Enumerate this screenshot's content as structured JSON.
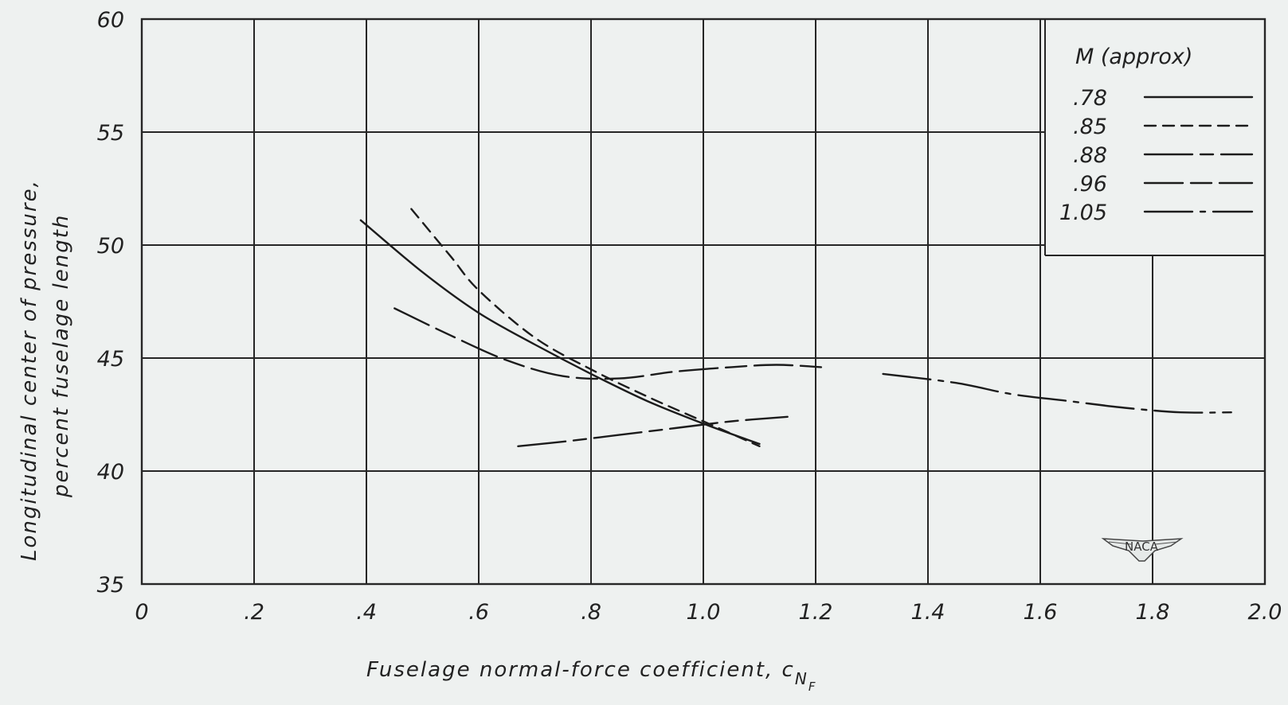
{
  "chart_data": {
    "type": "line",
    "xlabel": "Fuselage normal-force coefficient, c",
    "xlabel_subscript": "N",
    "xlabel_subsubscript": "F",
    "ylabel_line1": "Longitudinal center of pressure,",
    "ylabel_line2": "percent fuselage length",
    "xlim": [
      0,
      2.0
    ],
    "ylim": [
      35,
      60
    ],
    "x_ticks": [
      0,
      0.2,
      0.4,
      0.6,
      0.8,
      1.0,
      1.2,
      1.4,
      1.6,
      1.8,
      2.0
    ],
    "x_tick_labels": [
      "0",
      ".2",
      ".4",
      ".6",
      ".8",
      "1.0",
      "1.2",
      "1.4",
      "1.6",
      "1.8",
      "2.0"
    ],
    "y_ticks": [
      35,
      40,
      45,
      50,
      55,
      60
    ],
    "y_tick_labels": [
      "35",
      "40",
      "45",
      "50",
      "55",
      "60"
    ],
    "grid": true,
    "legend_title": "M (approx)",
    "legend_position": "top-right",
    "series": [
      {
        "name": ".78",
        "dash": "solid",
        "x": [
          0.39,
          0.5,
          0.6,
          0.7,
          0.8,
          0.9,
          1.0,
          1.1
        ],
        "y": [
          51.1,
          48.8,
          47.0,
          45.6,
          44.3,
          43.1,
          42.1,
          41.2
        ]
      },
      {
        "name": ".85",
        "dash": "short",
        "x": [
          0.48,
          0.55,
          0.6,
          0.7,
          0.8,
          0.9,
          1.0,
          1.1
        ],
        "y": [
          51.6,
          49.5,
          48.0,
          45.9,
          44.5,
          43.3,
          42.2,
          41.1
        ]
      },
      {
        "name": ".88",
        "dash": "long-short",
        "x": [
          0.67,
          0.75,
          0.85,
          0.95,
          1.05,
          1.15
        ],
        "y": [
          41.1,
          41.3,
          41.6,
          41.9,
          42.2,
          42.4
        ]
      },
      {
        "name": ".96",
        "dash": "long-medium",
        "x": [
          0.45,
          0.55,
          0.65,
          0.75,
          0.85,
          0.95,
          1.05,
          1.13,
          1.21
        ],
        "y": [
          47.2,
          46.0,
          44.9,
          44.2,
          44.1,
          44.4,
          44.6,
          44.7,
          44.6
        ]
      },
      {
        "name": "1.05",
        "dash": "long-dot",
        "x": [
          1.32,
          1.45,
          1.55,
          1.65,
          1.75,
          1.85,
          1.94
        ],
        "y": [
          44.3,
          43.9,
          43.4,
          43.1,
          42.8,
          42.6,
          42.6
        ]
      }
    ]
  },
  "watermark": "NACA"
}
